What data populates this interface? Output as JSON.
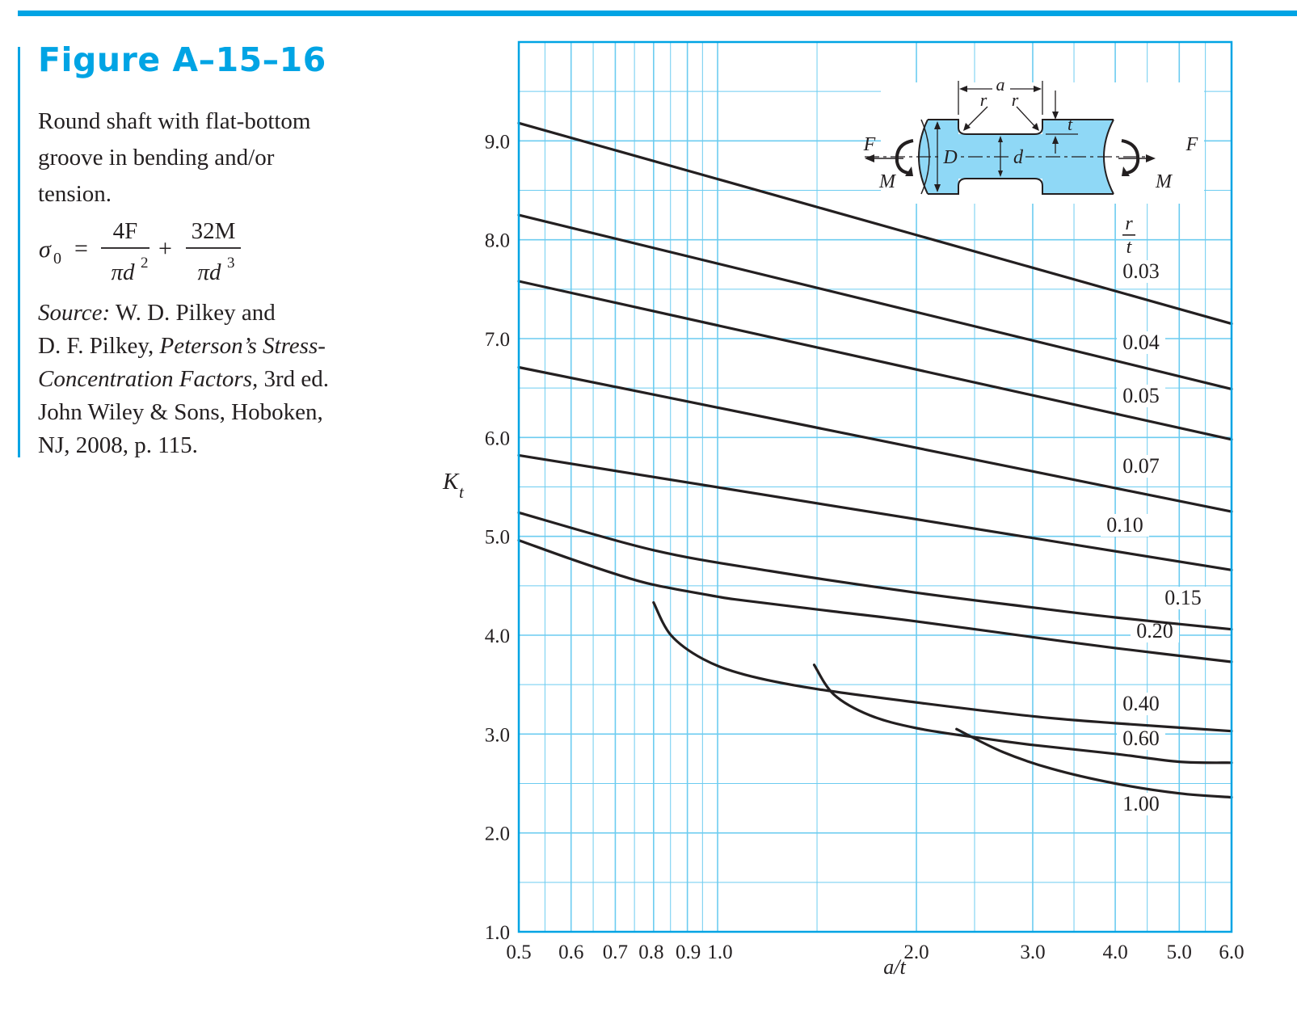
{
  "figure_title": "Figure A–15–16",
  "caption": {
    "description_lines": [
      "Round shaft with flat-bottom",
      "groove in bending and/or",
      "tension."
    ],
    "formula": {
      "lhs": "σ",
      "lhs_subscript": "0",
      "equals": "=",
      "plus": "+",
      "term1_numerator": "4F",
      "term1_denominator": "πd",
      "term1_exponent": "2",
      "term2_numerator": "32M",
      "term2_denominator": "πd",
      "term2_exponent": "3"
    },
    "source": {
      "label": "Source:",
      "line1_rest": "W. D. Pilkey and",
      "line2_plain": "D. F. Pilkey,",
      "line2_italic": "Peterson’s Stress-",
      "line3_italic": "Concentration Factors,",
      "line3_plain": "3rd ed.",
      "line4": "John Wiley & Sons, Hoboken,",
      "line5": "NJ, 2008, p. 115."
    }
  },
  "diagram": {
    "labels": {
      "a": "a",
      "r_left": "r",
      "r_right": "r",
      "t": "t",
      "D": "D",
      "d": "d",
      "F_left": "F",
      "F_right": "F",
      "M_left": "M",
      "M_right": "M"
    },
    "colors": {
      "shaft_fill": "#8fd8f6",
      "shaft_edge": "#00a4e4",
      "outline": "#231f20"
    }
  },
  "chart_data": {
    "type": "line",
    "xlabel": "a/t",
    "ylabel": "K",
    "ylabel_subscript": "t",
    "x_scale": "log",
    "xlim": [
      0.5,
      6.0
    ],
    "ylim": [
      1.0,
      10.0
    ],
    "x_ticks": [
      0.5,
      0.6,
      0.7,
      0.8,
      0.9,
      1.0,
      2.0,
      3.0,
      4.0,
      5.0,
      6.0
    ],
    "x_tick_labels": [
      "0.5",
      "0.6",
      "0.7",
      "0.8",
      "0.9",
      "1.0",
      "2.0",
      "3.0",
      "4.0",
      "5.0",
      "6.0"
    ],
    "y_ticks": [
      1.0,
      2.0,
      3.0,
      4.0,
      5.0,
      6.0,
      7.0,
      8.0,
      9.0
    ],
    "y_tick_labels": [
      "1.0",
      "2.0",
      "3.0",
      "4.0",
      "5.0",
      "6.0",
      "7.0",
      "8.0",
      "9.0"
    ],
    "grid": true,
    "legend_title": "r/t",
    "legend_title_num": "r",
    "legend_title_den": "t",
    "colors": {
      "grid": "#6cccf0",
      "frame": "#00a4e4",
      "curve": "#231f20"
    },
    "series": [
      {
        "name": "0.03",
        "x": [
          0.5,
          6.0
        ],
        "y": [
          9.18,
          7.15
        ]
      },
      {
        "name": "0.04",
        "x": [
          0.5,
          6.0
        ],
        "y": [
          8.25,
          6.49
        ]
      },
      {
        "name": "0.05",
        "x": [
          0.5,
          6.0
        ],
        "y": [
          7.58,
          5.98
        ]
      },
      {
        "name": "0.07",
        "x": [
          0.5,
          6.0
        ],
        "y": [
          6.71,
          5.25
        ]
      },
      {
        "name": "0.10",
        "x": [
          0.5,
          6.0
        ],
        "y": [
          5.82,
          4.66
        ]
      },
      {
        "name": "0.15",
        "x": [
          0.5,
          0.8,
          1.2,
          2.0,
          3.0,
          4.0,
          6.0
        ],
        "y": [
          5.24,
          4.86,
          4.65,
          4.43,
          4.28,
          4.18,
          4.06
        ]
      },
      {
        "name": "0.20",
        "x": [
          0.5,
          0.6,
          0.7,
          0.8,
          1.0,
          1.1,
          1.5,
          2.0,
          3.0,
          4.0,
          6.0
        ],
        "y": [
          4.96,
          4.77,
          4.62,
          4.51,
          4.39,
          4.35,
          4.24,
          4.14,
          3.98,
          3.87,
          3.73
        ]
      },
      {
        "name": "0.40",
        "x": [
          0.8,
          0.85,
          0.95,
          1.1,
          1.4,
          2.0,
          3.0,
          4.0,
          6.0
        ],
        "y": [
          4.33,
          4.0,
          3.76,
          3.6,
          3.46,
          3.32,
          3.18,
          3.11,
          3.03
        ]
      },
      {
        "name": "0.60",
        "x": [
          1.4,
          1.5,
          1.7,
          2.0,
          2.5,
          3.0,
          4.0,
          5.0,
          6.0
        ],
        "y": [
          3.7,
          3.4,
          3.19,
          3.06,
          2.96,
          2.89,
          2.8,
          2.72,
          2.71
        ]
      },
      {
        "name": "1.00",
        "x": [
          2.3,
          2.7,
          3.2,
          4.0,
          5.0,
          6.0
        ],
        "y": [
          3.05,
          2.82,
          2.65,
          2.5,
          2.4,
          2.36
        ]
      }
    ],
    "curve_label_positions_note": "labels placed at right end of each curve"
  }
}
